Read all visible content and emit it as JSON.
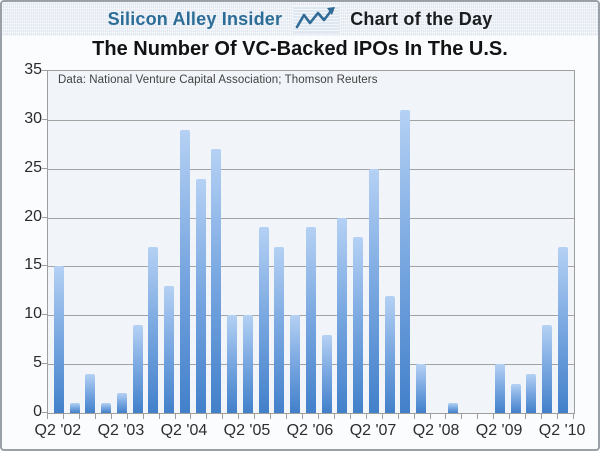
{
  "header": {
    "brand": "Silicon Alley Insider",
    "tagline": "Chart of the Day"
  },
  "title": "The Number Of VC-Backed IPOs In The U.S.",
  "source_note": "Data: National Venture Capital Association; Thomson Reuters",
  "colors": {
    "brand_blue": "#2c6d97",
    "bar_top": "#b5d1f4",
    "bar_bottom": "#4280ca",
    "gridline": "#a3a3a3",
    "plot_background": "#f1f4f9"
  },
  "chart_data": {
    "type": "bar",
    "title": "The Number Of VC-Backed IPOs In The U.S.",
    "xlabel": "",
    "ylabel": "",
    "categories": [
      "Q2 '02",
      "Q3 '02",
      "Q4 '02",
      "Q1 '03",
      "Q2 '03",
      "Q3 '03",
      "Q4 '03",
      "Q1 '04",
      "Q2 '04",
      "Q3 '04",
      "Q4 '04",
      "Q1 '05",
      "Q2 '05",
      "Q3 '05",
      "Q4 '05",
      "Q1 '06",
      "Q2 '06",
      "Q3 '06",
      "Q4 '06",
      "Q1 '07",
      "Q2 '07",
      "Q3 '07",
      "Q4 '07",
      "Q1 '08",
      "Q2 '08",
      "Q3 '08",
      "Q4 '08",
      "Q1 '09",
      "Q2 '09",
      "Q3 '09",
      "Q4 '09",
      "Q1 '10",
      "Q2 '10"
    ],
    "values": [
      15,
      1,
      4,
      1,
      2,
      9,
      17,
      13,
      29,
      24,
      27,
      10,
      10,
      19,
      17,
      10,
      19,
      8,
      20,
      18,
      25,
      12,
      31,
      5,
      0,
      1,
      0,
      0,
      5,
      3,
      4,
      9,
      17
    ],
    "x_tick_labels": [
      "Q2 '02",
      "Q2 '03",
      "Q2 '04",
      "Q2 '05",
      "Q2 '06",
      "Q2 '07",
      "Q2 '08",
      "Q2 '09",
      "Q2 '10"
    ],
    "x_label_every": 4,
    "y_ticks": [
      0,
      5,
      10,
      15,
      20,
      25,
      30,
      35
    ],
    "ylim": [
      0,
      35
    ],
    "grid": true,
    "legend": false,
    "annotation": "Data: National Venture Capital Association; Thomson Reuters"
  }
}
